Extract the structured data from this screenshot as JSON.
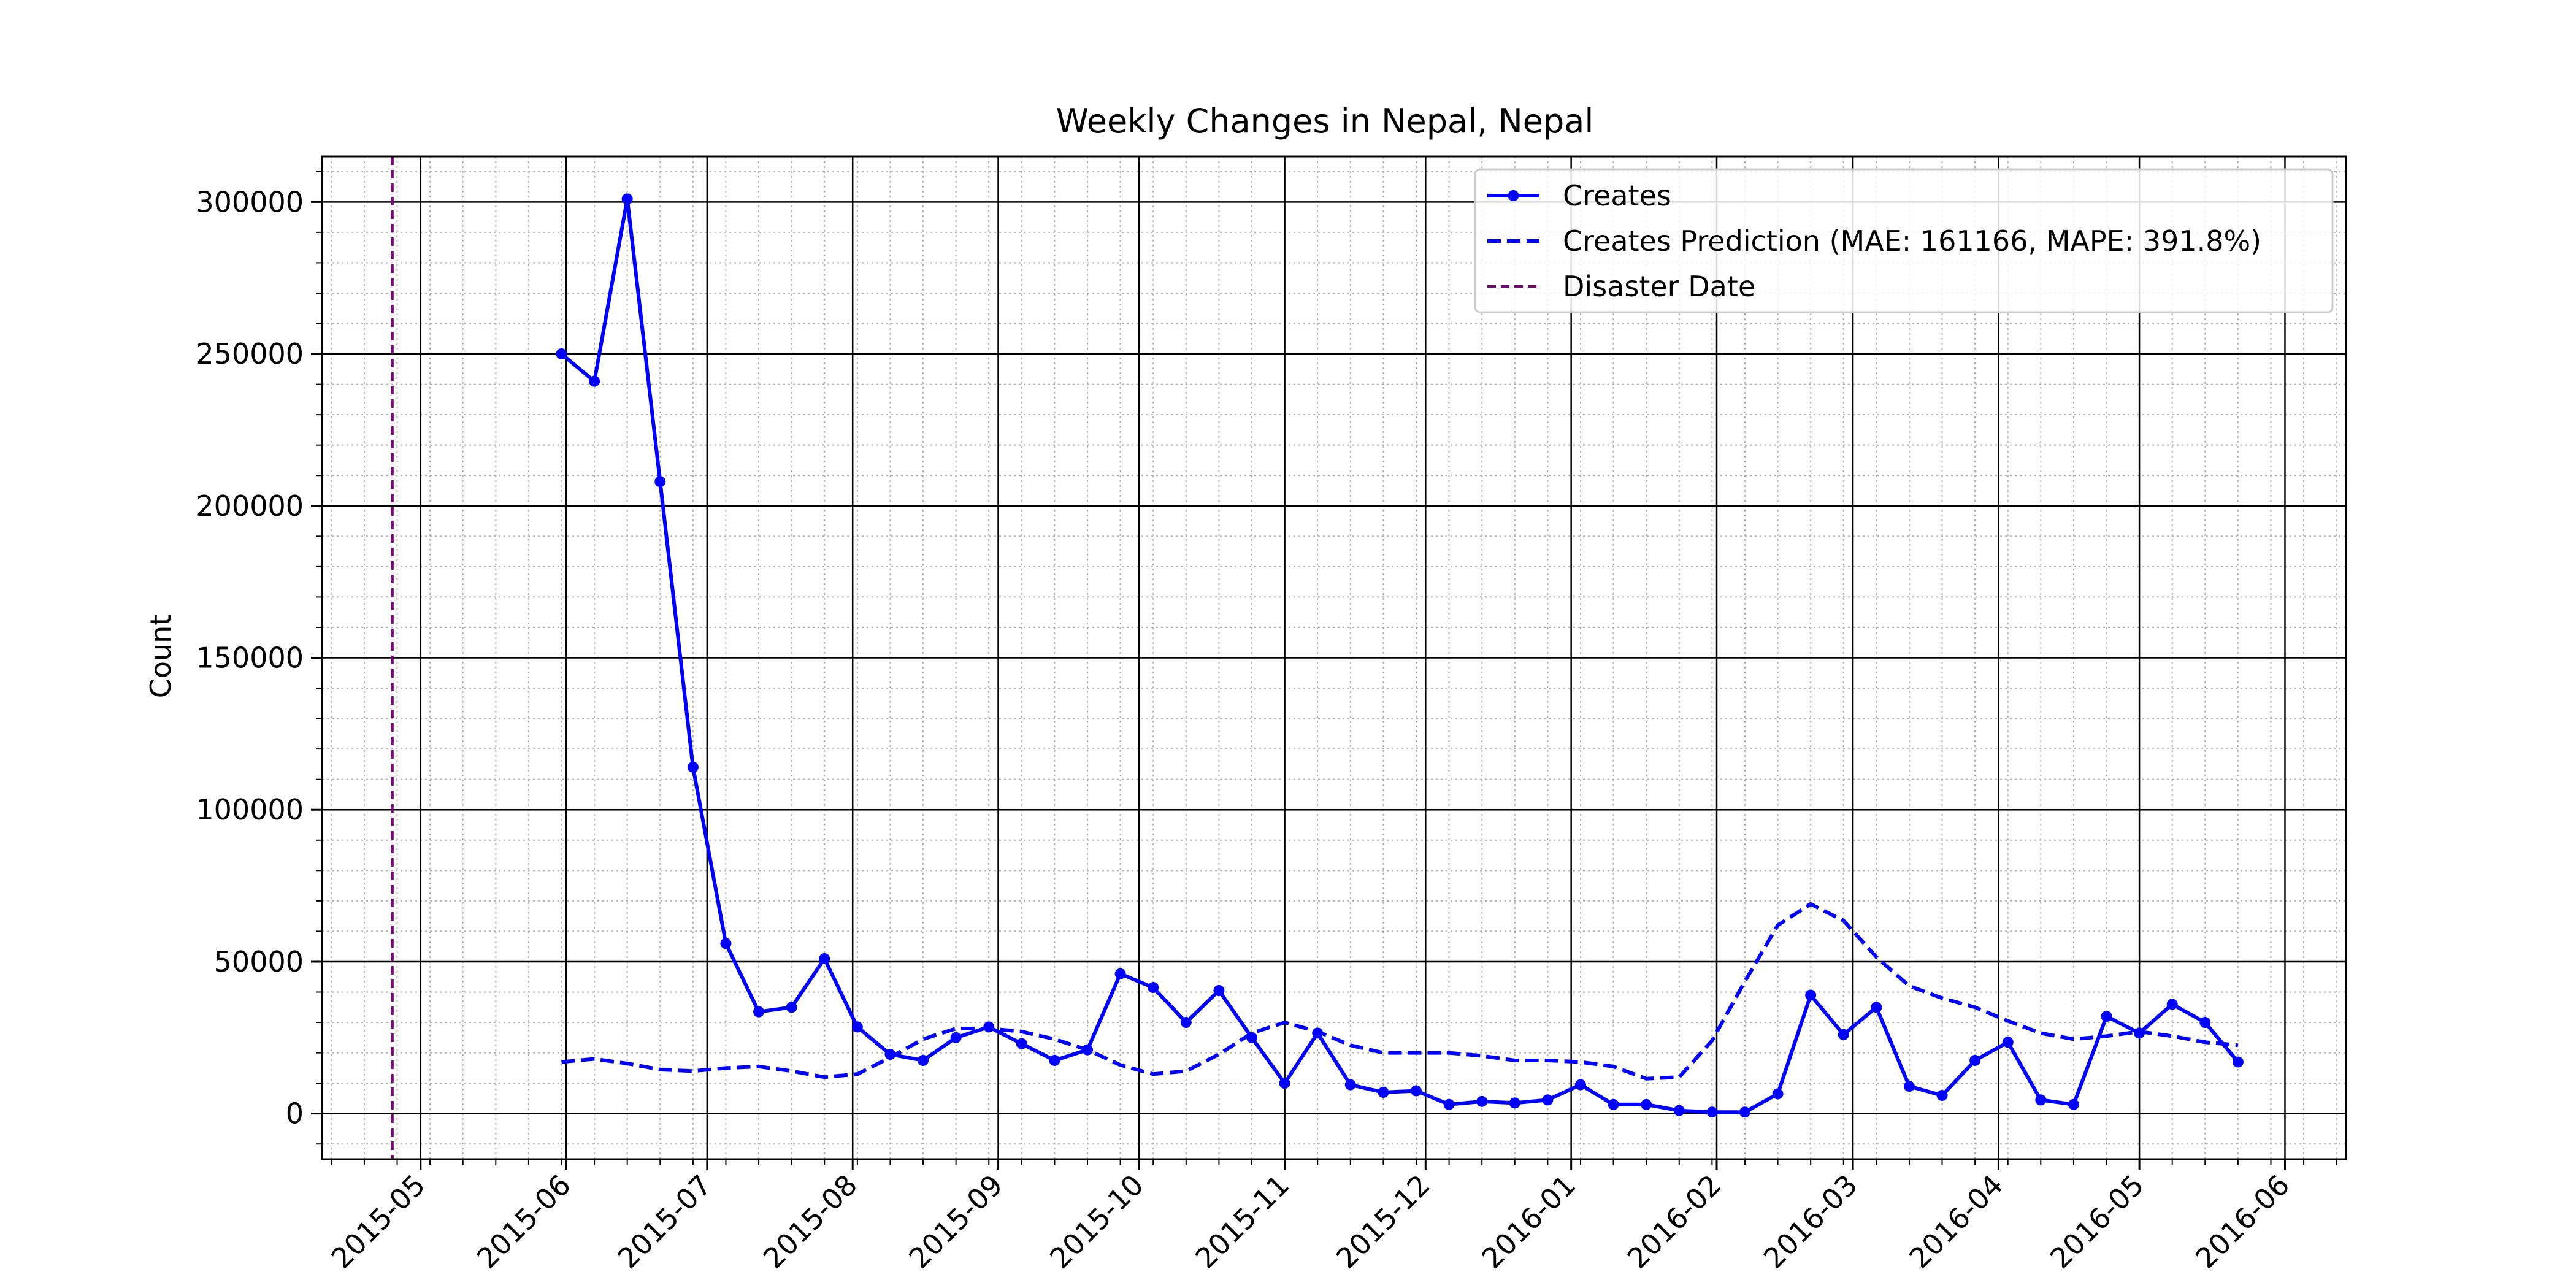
{
  "chart_data": {
    "type": "line",
    "title": "Weekly Changes in Nepal, Nepal",
    "xlabel": "",
    "ylabel": "Count",
    "x_axis": "date",
    "xlim": [
      "2015-04-10",
      "2016-06-14"
    ],
    "ylim": [
      -15000,
      315000
    ],
    "x_ticks": [
      "2015-05",
      "2015-06",
      "2015-07",
      "2015-08",
      "2015-09",
      "2015-10",
      "2015-11",
      "2015-12",
      "2016-01",
      "2016-02",
      "2016-03",
      "2016-04",
      "2016-05",
      "2016-06"
    ],
    "y_ticks": [
      0,
      50000,
      100000,
      150000,
      200000,
      250000,
      300000
    ],
    "y_tick_labels": [
      "0",
      "50000",
      "100000",
      "150000",
      "200000",
      "250000",
      "300000"
    ],
    "grid": true,
    "minor_grid": true,
    "legend_position": "top-right",
    "x": [
      "2015-05-31",
      "2015-06-07",
      "2015-06-14",
      "2015-06-21",
      "2015-06-28",
      "2015-07-05",
      "2015-07-12",
      "2015-07-19",
      "2015-07-26",
      "2015-08-02",
      "2015-08-09",
      "2015-08-16",
      "2015-08-23",
      "2015-08-30",
      "2015-09-06",
      "2015-09-13",
      "2015-09-20",
      "2015-09-27",
      "2015-10-04",
      "2015-10-11",
      "2015-10-18",
      "2015-10-25",
      "2015-11-01",
      "2015-11-08",
      "2015-11-15",
      "2015-11-22",
      "2015-11-29",
      "2015-12-06",
      "2015-12-13",
      "2015-12-20",
      "2015-12-27",
      "2016-01-03",
      "2016-01-10",
      "2016-01-17",
      "2016-01-24",
      "2016-01-31",
      "2016-02-07",
      "2016-02-14",
      "2016-02-21",
      "2016-02-28",
      "2016-03-06",
      "2016-03-13",
      "2016-03-20",
      "2016-03-27",
      "2016-04-03",
      "2016-04-10",
      "2016-04-17",
      "2016-04-24",
      "2016-05-01",
      "2016-05-08",
      "2016-05-15",
      "2016-05-22"
    ],
    "series": [
      {
        "name": "Creates",
        "style": "solid-marker",
        "color": "#0000ff",
        "values": [
          250000,
          241000,
          301000,
          208000,
          114000,
          56000,
          33500,
          35000,
          51000,
          28500,
          19500,
          17500,
          25000,
          28500,
          23000,
          17500,
          21000,
          46000,
          41500,
          30000,
          40500,
          25000,
          10000,
          26500,
          9500,
          7000,
          7500,
          3000,
          4000,
          3500,
          4500,
          9500,
          3000,
          3000,
          1000,
          500,
          500,
          6500,
          39000,
          26000,
          35000,
          9000,
          6000,
          17500,
          23500,
          4500,
          3000,
          32000,
          26500,
          36000,
          30000,
          17000
        ]
      },
      {
        "name": "Creates Prediction (MAE: 161166, MAPE: 391.8%)",
        "style": "dashed",
        "color": "#0000ff",
        "values": [
          17000,
          18000,
          16500,
          14500,
          14000,
          15000,
          15500,
          14000,
          12000,
          13000,
          18500,
          24500,
          28000,
          28000,
          27000,
          24500,
          21000,
          16000,
          13000,
          14000,
          19500,
          26500,
          30000,
          27000,
          22500,
          20000,
          20000,
          20000,
          19000,
          17500,
          17500,
          17000,
          15500,
          11500,
          12000,
          24000,
          43500,
          62000,
          69000,
          63500,
          51500,
          42000,
          38000,
          35000,
          30500,
          26500,
          24500,
          25500,
          27000,
          25500,
          23500,
          22500
        ]
      }
    ],
    "vlines": [
      {
        "name": "Disaster Date",
        "date": "2015-04-25",
        "color": "#800080",
        "style": "dashed"
      }
    ]
  }
}
